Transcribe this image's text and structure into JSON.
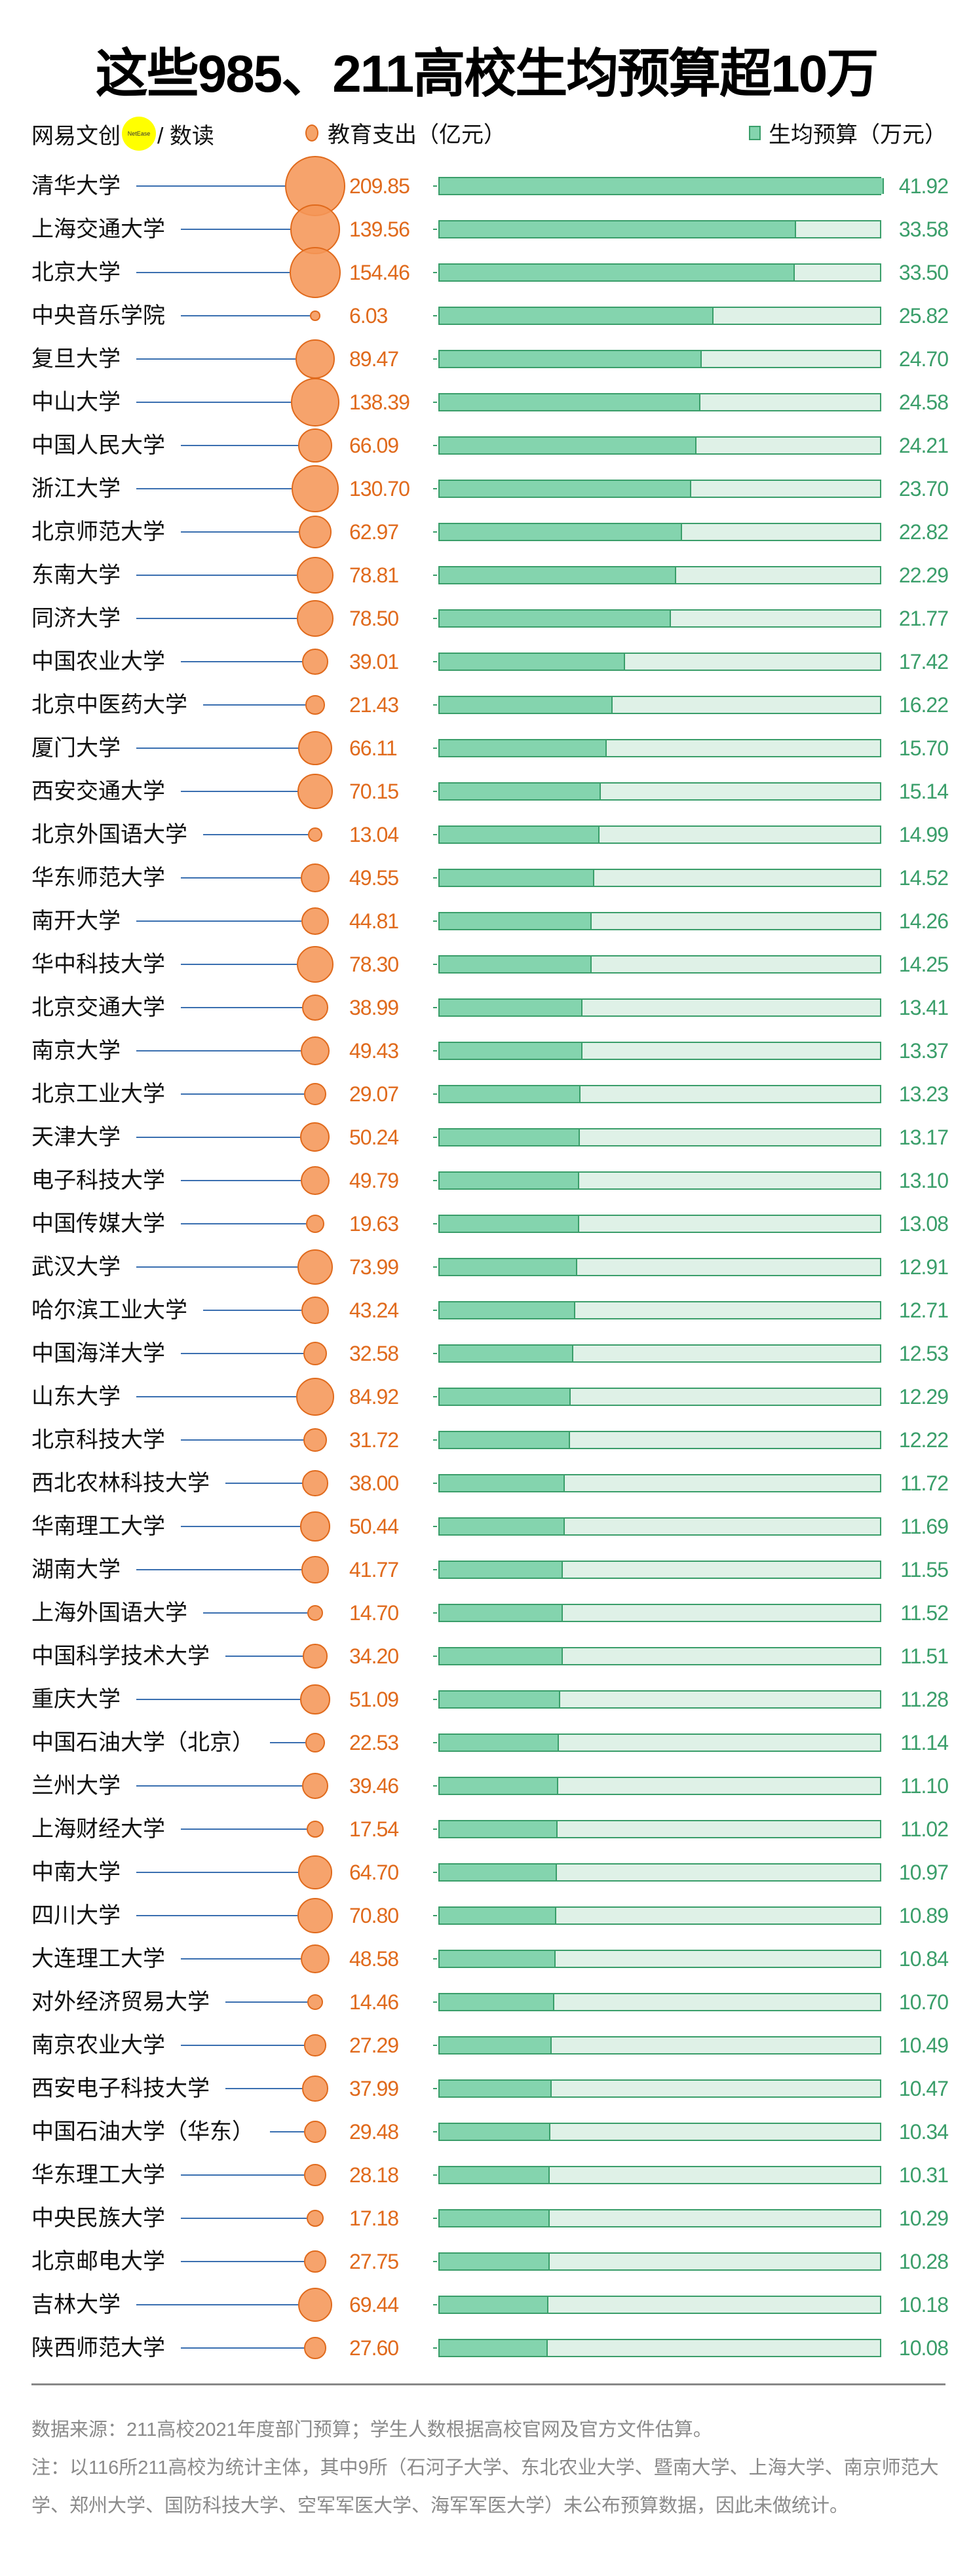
{
  "title": "这些985、211高校生均预算超10万",
  "logo": {
    "brand": "网易文创",
    "badge": "NetEase",
    "sub": "/ 数读"
  },
  "colors": {
    "expenditure": "#f5a46a",
    "budget_fill": "#84d4ae",
    "budget_track": "#dff1e7",
    "budget_text": "#3a9e6a",
    "expenditure_text": "#e06a1c",
    "connector": "#3a6fb0"
  },
  "chart_data": {
    "type": "bar",
    "legend": [
      {
        "name": "教育支出（亿元）",
        "mark": "bubble"
      },
      {
        "name": "生均预算（万元）",
        "mark": "bar"
      }
    ],
    "legend_placement": "top",
    "budget_max": 41.92,
    "categories": [
      "清华大学",
      "上海交通大学",
      "北京大学",
      "中央音乐学院",
      "复旦大学",
      "中山大学",
      "中国人民大学",
      "浙江大学",
      "北京师范大学",
      "东南大学",
      "同济大学",
      "中国农业大学",
      "北京中医药大学",
      "厦门大学",
      "西安交通大学",
      "北京外国语大学",
      "华东师范大学",
      "南开大学",
      "华中科技大学",
      "北京交通大学",
      "南京大学",
      "北京工业大学",
      "天津大学",
      "电子科技大学",
      "中国传媒大学",
      "武汉大学",
      "哈尔滨工业大学",
      "中国海洋大学",
      "山东大学",
      "北京科技大学",
      "西北农林科技大学",
      "华南理工大学",
      "湖南大学",
      "上海外国语大学",
      "中国科学技术大学",
      "重庆大学",
      "中国石油大学（北京）",
      "兰州大学",
      "上海财经大学",
      "中南大学",
      "四川大学",
      "大连理工大学",
      "对外经济贸易大学",
      "南京农业大学",
      "西安电子科技大学",
      "中国石油大学（华东）",
      "华东理工大学",
      "中央民族大学",
      "北京邮电大学",
      "吉林大学",
      "陕西师范大学"
    ],
    "series": [
      {
        "name": "教育支出（亿元）",
        "values": [
          "209.85",
          "139.56",
          "154.46",
          "6.03",
          "89.47",
          "138.39",
          "66.09",
          "130.70",
          "62.97",
          "78.81",
          "78.50",
          "39.01",
          "21.43",
          "66.11",
          "70.15",
          "13.04",
          "49.55",
          "44.81",
          "78.30",
          "38.99",
          "49.43",
          "29.07",
          "50.24",
          "49.79",
          "19.63",
          "73.99",
          "43.24",
          "32.58",
          "84.92",
          "31.72",
          "38.00",
          "50.44",
          "41.77",
          "14.70",
          "34.20",
          "51.09",
          "22.53",
          "39.46",
          "17.54",
          "64.70",
          "70.80",
          "48.58",
          "14.46",
          "27.29",
          "37.99",
          "29.48",
          "28.18",
          "17.18",
          "27.75",
          "69.44",
          "27.60"
        ]
      },
      {
        "name": "生均预算（万元）",
        "values": [
          "41.92",
          "33.58",
          "33.50",
          "25.82",
          "24.70",
          "24.58",
          "24.21",
          "23.70",
          "22.82",
          "22.29",
          "21.77",
          "17.42",
          "16.22",
          "15.70",
          "15.14",
          "14.99",
          "14.52",
          "14.26",
          "14.25",
          "13.41",
          "13.37",
          "13.23",
          "13.17",
          "13.10",
          "13.08",
          "12.91",
          "12.71",
          "12.53",
          "12.29",
          "12.22",
          "11.72",
          "11.69",
          "11.55",
          "11.52",
          "11.51",
          "11.28",
          "11.14",
          "11.10",
          "11.02",
          "10.97",
          "10.89",
          "10.84",
          "10.70",
          "10.49",
          "10.47",
          "10.34",
          "10.31",
          "10.29",
          "10.28",
          "10.18",
          "10.08"
        ]
      }
    ]
  },
  "footer": {
    "source": "数据来源：211高校2021年度部门预算；学生人数根据高校官网及官方文件估算。",
    "note": "注：以116所211高校为统计主体，其中9所（石河子大学、东北农业大学、暨南大学、上海大学、南京师范大学、郑州大学、国防科技大学、空军军医大学、海军军医大学）未公布预算数据，因此未做统计。"
  }
}
